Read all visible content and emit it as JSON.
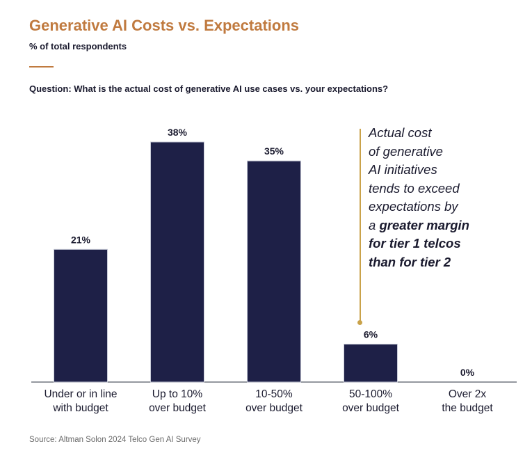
{
  "header": {
    "title": "Generative AI Costs vs. Expectations",
    "subtitle": "% of total respondents",
    "question": "Question: What is the actual cost of generative AI use cases vs. your expectations?"
  },
  "annotation": {
    "line1": "Actual cost",
    "line2": "of generative",
    "line3": "AI initiatives",
    "line4": "tends to exceed",
    "line5": "expectations by",
    "line6_prefix": "a ",
    "line6_bold": "greater margin",
    "line7": "for tier 1 telcos",
    "line8": "than for tier 2"
  },
  "footer": {
    "source": "Source: Altman Solon 2024 Telco Gen AI Survey"
  },
  "colors": {
    "accent": "#c07a3f",
    "bar": "#1e2047",
    "text": "#1a1a2e"
  },
  "chart_data": {
    "type": "bar",
    "title": "Generative AI Costs vs. Expectations",
    "ylabel": "% of total respondents",
    "xlabel": "",
    "ylim": [
      0,
      38
    ],
    "grid": false,
    "categories": [
      [
        "Under or in line",
        "with budget"
      ],
      [
        "Up to 10%",
        "over budget"
      ],
      [
        "10-50%",
        "over budget"
      ],
      [
        "50-100%",
        "over budget"
      ],
      [
        "Over 2x",
        "the budget"
      ]
    ],
    "values": [
      21,
      38,
      35,
      6,
      0
    ],
    "value_labels": [
      "21%",
      "38%",
      "35%",
      "6%",
      "0%"
    ]
  }
}
